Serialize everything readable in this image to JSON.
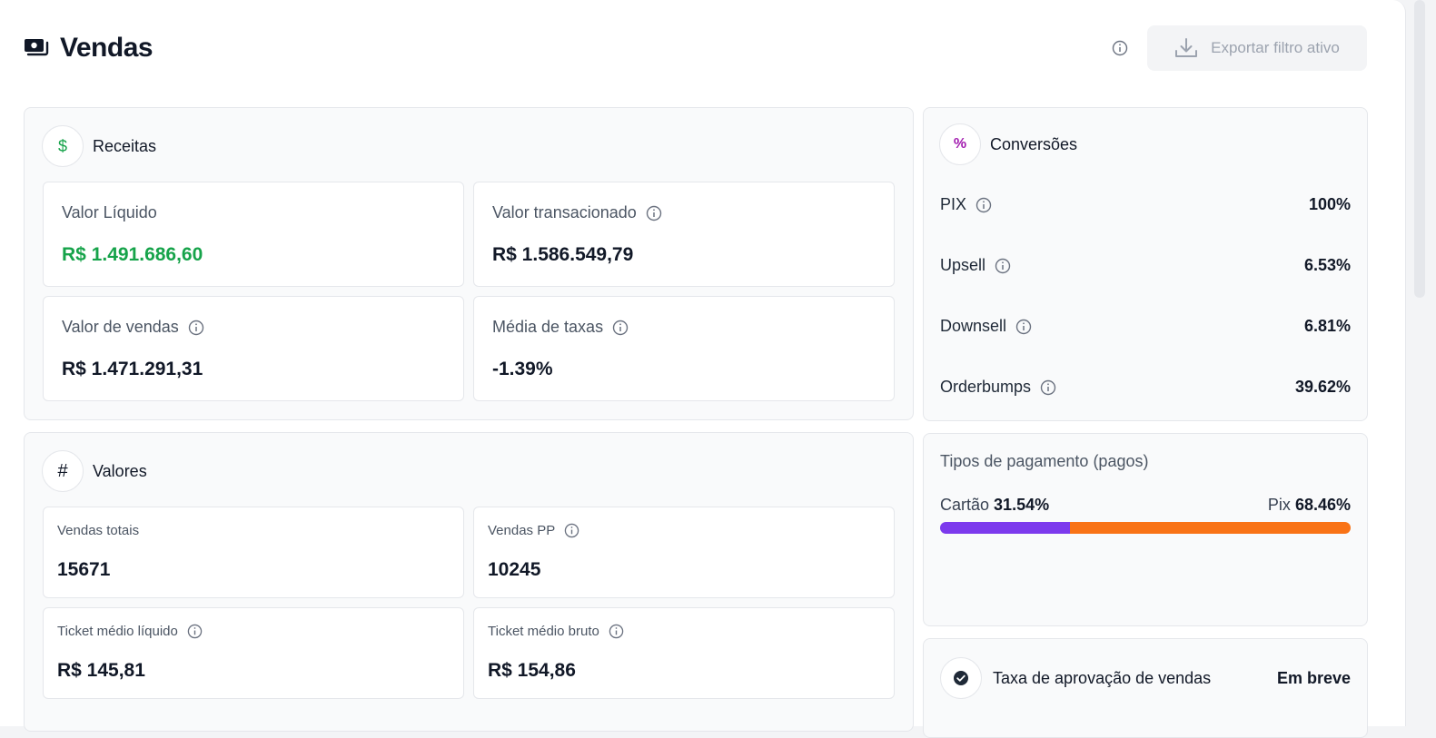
{
  "header": {
    "title": "Vendas",
    "export_label": "Exportar filtro ativo"
  },
  "receitas": {
    "title": "Receitas",
    "metrics": [
      {
        "label": "Valor Líquido",
        "value": "R$ 1.491.686,60"
      },
      {
        "label": "Valor transacionado",
        "value": "R$ 1.586.549,79"
      },
      {
        "label": "Valor de vendas",
        "value": "R$ 1.471.291,31"
      },
      {
        "label": "Média de taxas",
        "value": "-1.39%"
      }
    ]
  },
  "valores": {
    "title": "Valores",
    "metrics": [
      {
        "label": "Vendas totais",
        "value": "15671"
      },
      {
        "label": "Vendas PP",
        "value": "10245"
      },
      {
        "label": "Ticket médio líquido",
        "value": "R$ 145,81"
      },
      {
        "label": "Ticket médio bruto",
        "value": "R$ 154,86"
      }
    ]
  },
  "conversoes": {
    "title": "Conversões",
    "rows": [
      {
        "label": "PIX",
        "value": "100%"
      },
      {
        "label": "Upsell",
        "value": "6.53%"
      },
      {
        "label": "Downsell",
        "value": "6.81%"
      },
      {
        "label": "Orderbumps",
        "value": "39.62%"
      }
    ]
  },
  "pagamento": {
    "title": "Tipos de pagamento (pagos)",
    "card_label": "Cartão",
    "card_value": "31.54%",
    "card_fraction": 0.3154,
    "pix_label": "Pix",
    "pix_value": "68.46%",
    "card_color": "#7c3aed",
    "pix_color": "#f97316"
  },
  "aprovacao": {
    "label": "Taxa de aprovação de vendas",
    "status": "Em breve"
  },
  "colors": {
    "positive": "#16a34a",
    "dollar_icon": "#16a34a",
    "percent_icon": "#a21caf"
  }
}
